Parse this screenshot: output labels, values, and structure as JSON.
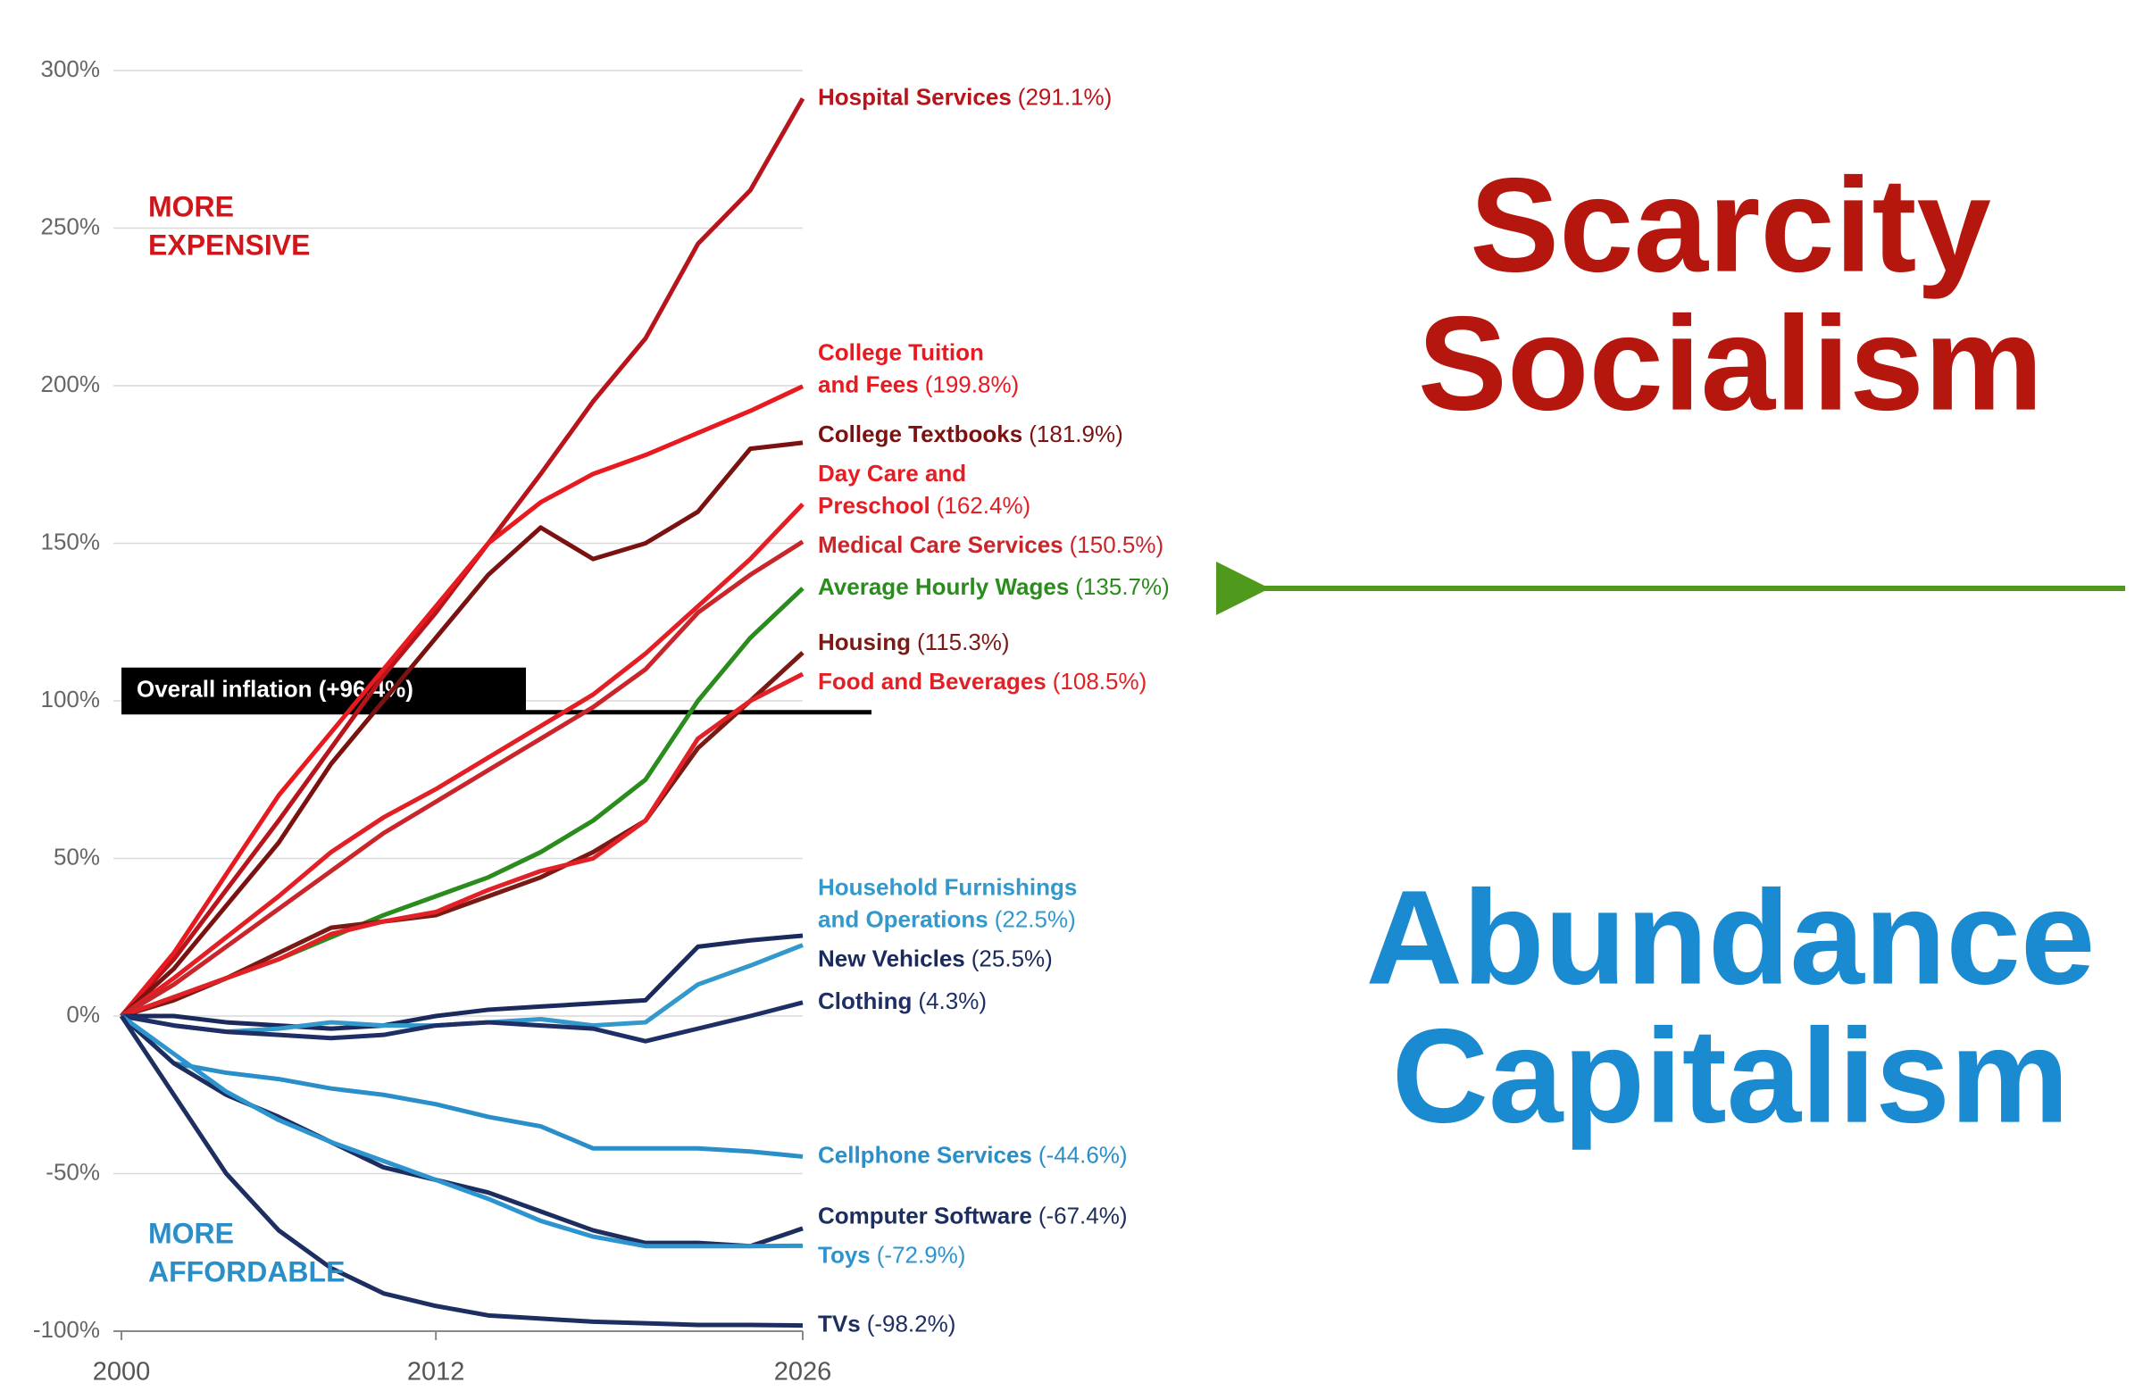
{
  "chart_data": {
    "type": "line",
    "x": [
      2000,
      2002,
      2004,
      2006,
      2008,
      2010,
      2012,
      2014,
      2016,
      2018,
      2020,
      2022,
      2024,
      2026
    ],
    "xlim": [
      2000,
      2026
    ],
    "xticks": [
      2000,
      2012,
      2026
    ],
    "ylim": [
      -100,
      300
    ],
    "yticks": [
      {
        "value": -100,
        "label": "-100%"
      },
      {
        "value": -50,
        "label": "-50%"
      },
      {
        "value": 0,
        "label": "0%"
      },
      {
        "value": 50,
        "label": "50%"
      },
      {
        "value": 100,
        "label": "100%"
      },
      {
        "value": 150,
        "label": "150%"
      },
      {
        "value": 200,
        "label": "200%"
      },
      {
        "value": 250,
        "label": "250%"
      },
      {
        "value": 300,
        "label": "300%"
      }
    ],
    "grid": true,
    "series": [
      {
        "name": [
          "Hospital Services"
        ],
        "color": "#b8141b",
        "values": [
          0,
          18,
          40,
          62,
          85,
          108,
          128,
          150,
          172,
          195,
          215,
          245,
          262,
          291.1
        ],
        "value_labels": [
          null,
          null,
          null,
          null,
          null,
          null,
          null,
          null,
          null,
          null,
          null,
          null,
          null,
          "(291.1%)"
        ]
      },
      {
        "name": [
          "College Tuition",
          "and Fees"
        ],
        "color": "#e8191f",
        "values": [
          0,
          20,
          45,
          70,
          90,
          110,
          130,
          150,
          163,
          172,
          178,
          185,
          192,
          199.8
        ],
        "value_labels": [
          null,
          null,
          null,
          null,
          null,
          null,
          null,
          null,
          null,
          null,
          null,
          null,
          null,
          "(199.8%)"
        ]
      },
      {
        "name": [
          "College Textbooks"
        ],
        "color": "#7a1212",
        "values": [
          0,
          15,
          35,
          55,
          80,
          100,
          120,
          140,
          155,
          145,
          150,
          160,
          180,
          181.9
        ],
        "value_labels": [
          null,
          null,
          null,
          null,
          null,
          null,
          null,
          null,
          null,
          null,
          null,
          null,
          null,
          "(181.9%)"
        ]
      },
      {
        "name": [
          "Day Care and",
          "Preschool"
        ],
        "color": "#e31e24",
        "values": [
          0,
          12,
          25,
          38,
          52,
          63,
          72,
          82,
          92,
          102,
          115,
          130,
          145,
          162.4
        ],
        "value_labels": [
          null,
          null,
          null,
          null,
          null,
          null,
          null,
          null,
          null,
          null,
          null,
          null,
          null,
          "(162.4%)"
        ]
      },
      {
        "name": [
          "Medical Care Services"
        ],
        "color": "#c8262b",
        "values": [
          0,
          10,
          22,
          34,
          46,
          58,
          68,
          78,
          88,
          98,
          110,
          128,
          140,
          150.5
        ],
        "value_labels": [
          null,
          null,
          null,
          null,
          null,
          null,
          null,
          null,
          null,
          null,
          null,
          null,
          null,
          "(150.5%)"
        ]
      },
      {
        "name": [
          "Average Hourly Wages"
        ],
        "color": "#2a8c1c",
        "values": [
          0,
          6,
          12,
          18,
          25,
          32,
          38,
          44,
          52,
          62,
          75,
          100,
          120,
          135.7
        ],
        "value_labels": [
          null,
          null,
          null,
          null,
          null,
          null,
          null,
          null,
          null,
          null,
          null,
          null,
          null,
          "(135.7%)"
        ]
      },
      {
        "name": [
          "Housing"
        ],
        "color": "#7a1a14",
        "values": [
          0,
          5,
          12,
          20,
          28,
          30,
          32,
          38,
          44,
          52,
          62,
          85,
          100,
          115.3
        ],
        "value_labels": [
          null,
          null,
          null,
          null,
          null,
          null,
          null,
          null,
          null,
          null,
          null,
          null,
          null,
          "(115.3%)"
        ]
      },
      {
        "name": [
          "Food and Beverages"
        ],
        "color": "#e32026",
        "values": [
          0,
          6,
          12,
          18,
          26,
          30,
          33,
          40,
          46,
          50,
          62,
          88,
          100,
          108.5
        ],
        "value_labels": [
          null,
          null,
          null,
          null,
          null,
          null,
          null,
          null,
          null,
          null,
          null,
          null,
          null,
          "(108.5%)"
        ]
      },
      {
        "name": [
          "New Vehicles"
        ],
        "color": "#1b2a5c",
        "values": [
          0,
          0,
          -2,
          -3,
          -4,
          -3,
          0,
          2,
          3,
          4,
          5,
          22,
          24,
          25.5
        ],
        "value_labels": [
          null,
          null,
          null,
          null,
          null,
          null,
          null,
          null,
          null,
          null,
          null,
          null,
          null,
          "(25.5%)"
        ]
      },
      {
        "name": [
          "Household Furnishings",
          "and Operations"
        ],
        "color": "#3399cc",
        "values": [
          0,
          -3,
          -5,
          -4,
          -2,
          -3,
          -3,
          -2,
          -1,
          -3,
          -2,
          10,
          16,
          22.5
        ],
        "value_labels": [
          null,
          null,
          null,
          null,
          null,
          null,
          null,
          null,
          null,
          null,
          null,
          null,
          null,
          "(22.5%)"
        ]
      },
      {
        "name": [
          "Clothing"
        ],
        "color": "#1f2f66",
        "values": [
          0,
          -3,
          -5,
          -6,
          -7,
          -6,
          -3,
          -2,
          -3,
          -4,
          -8,
          -4,
          0,
          4.3
        ],
        "value_labels": [
          null,
          null,
          null,
          null,
          null,
          null,
          null,
          null,
          null,
          null,
          null,
          null,
          null,
          "(4.3%)"
        ]
      },
      {
        "name": [
          "Cellphone Services"
        ],
        "color": "#2a8fc8",
        "values": [
          0,
          -15,
          -18,
          -20,
          -23,
          -25,
          -28,
          -32,
          -35,
          -42,
          -42,
          -42,
          -43,
          -44.6
        ],
        "value_labels": [
          null,
          null,
          null,
          null,
          null,
          null,
          null,
          null,
          null,
          null,
          null,
          null,
          null,
          "(-44.6%)"
        ]
      },
      {
        "name": [
          "Computer Software"
        ],
        "color": "#1c2d5e",
        "values": [
          0,
          -15,
          -25,
          -32,
          -40,
          -48,
          -52,
          -56,
          -62,
          -68,
          -72,
          -72,
          -73,
          -67.4
        ],
        "value_labels": [
          null,
          null,
          null,
          null,
          null,
          null,
          null,
          null,
          null,
          null,
          null,
          null,
          null,
          "(-67.4%)"
        ]
      },
      {
        "name": [
          "Toys"
        ],
        "color": "#2c94cf",
        "values": [
          0,
          -12,
          -24,
          -33,
          -40,
          -46,
          -52,
          -58,
          -65,
          -70,
          -73,
          -73,
          -73,
          -72.9
        ],
        "value_labels": [
          null,
          null,
          null,
          null,
          null,
          null,
          null,
          null,
          null,
          null,
          null,
          null,
          null,
          "(-72.9%)"
        ]
      },
      {
        "name": [
          "TVs"
        ],
        "color": "#1d2e60",
        "values": [
          0,
          -25,
          -50,
          -68,
          -80,
          -88,
          -92,
          -95,
          -96,
          -97,
          -97.5,
          -98,
          -98,
          -98.2
        ],
        "value_labels": [
          null,
          null,
          null,
          null,
          null,
          null,
          null,
          null,
          null,
          null,
          null,
          null,
          null,
          "(-98.2%)"
        ]
      }
    ],
    "inflation": {
      "value": 96.4,
      "label": "Overall inflation (+96.4%)"
    },
    "region_labels": [
      {
        "lines": [
          "MORE",
          "EXPENSIVE"
        ],
        "color": "#d0161b"
      },
      {
        "lines": [
          "MORE",
          "AFFORDABLE"
        ],
        "color": "#2a8fc8"
      }
    ],
    "callouts": [
      {
        "lines": [
          "Scarcity",
          "Socialism"
        ],
        "color": "#b5170f"
      },
      {
        "lines": [
          "Abundance",
          "Capitalism"
        ],
        "color": "#1a8bd0"
      }
    ]
  }
}
